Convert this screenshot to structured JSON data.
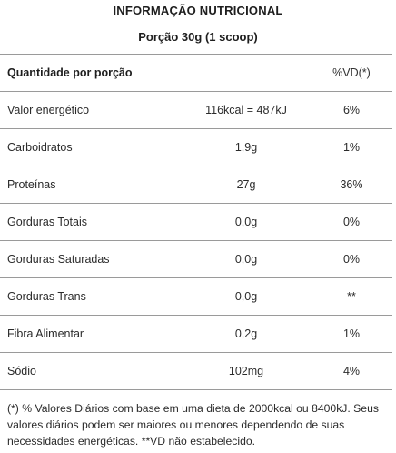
{
  "title": "INFORMAÇÃO NUTRICIONAL",
  "serving": "Porção 30g (1 scoop)",
  "table": {
    "header": {
      "name": "Quantidade por porção",
      "vd": "%VD(*)"
    },
    "rows": [
      {
        "name": "Valor energético",
        "amount": "116kcal = 487kJ",
        "vd": "6%"
      },
      {
        "name": "Carboidratos",
        "amount": "1,9g",
        "vd": "1%"
      },
      {
        "name": "Proteínas",
        "amount": "27g",
        "vd": "36%"
      },
      {
        "name": "Gorduras Totais",
        "amount": "0,0g",
        "vd": "0%"
      },
      {
        "name": "Gorduras Saturadas",
        "amount": "0,0g",
        "vd": "0%"
      },
      {
        "name": "Gorduras Trans",
        "amount": "0,0g",
        "vd": "**"
      },
      {
        "name": "Fibra Alimentar",
        "amount": "0,2g",
        "vd": "1%"
      },
      {
        "name": "Sódio",
        "amount": "102mg",
        "vd": "4%"
      }
    ]
  },
  "footnote": "(*) % Valores Diários com base em uma dieta de 2000kcal ou 8400kJ. Seus valores diários podem ser maiores ou menores dependendo de suas necessidades energéticas. **VD não estabelecido."
}
